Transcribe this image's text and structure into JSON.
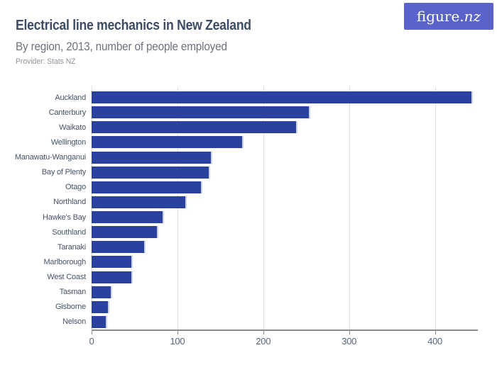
{
  "header": {
    "title": "Electrical line mechanics in New Zealand",
    "subtitle": "By region, 2013, number of people employed",
    "provider_label": "Provider:",
    "provider_value": "Stats NZ"
  },
  "brand": {
    "logo_prefix": "figure.",
    "logo_suffix": "nz",
    "logo_bg": "#5a63c9",
    "logo_text_color": "#ffffff"
  },
  "chart_data": {
    "type": "bar",
    "orientation": "horizontal",
    "title": "Electrical line mechanics in New Zealand",
    "subtitle": "By region, 2013, number of people employed",
    "provider": "Stats NZ",
    "categories": [
      "Auckland",
      "Canterbury",
      "Waikato",
      "Wellington",
      "Manawatu-Wanganui",
      "Bay of Plenty",
      "Otago",
      "Northland",
      "Hawke's Bay",
      "Southland",
      "Taranaki",
      "Marlborough",
      "West Coast",
      "Tasman",
      "Gisborne",
      "Nelson"
    ],
    "values": [
      444,
      255,
      240,
      177,
      141,
      138,
      129,
      111,
      84,
      78,
      63,
      48,
      48,
      24,
      21,
      18
    ],
    "xlabel": "",
    "ylabel": "",
    "xlim": [
      0,
      450
    ],
    "xticks": [
      0,
      100,
      200,
      300,
      400
    ],
    "grid": true,
    "legend": false,
    "bar_color": "#2a429e",
    "bar_edge_color": "#ccd3ee",
    "gridline_color": "#e1e1e1",
    "axis_color": "#8a8a8a"
  }
}
